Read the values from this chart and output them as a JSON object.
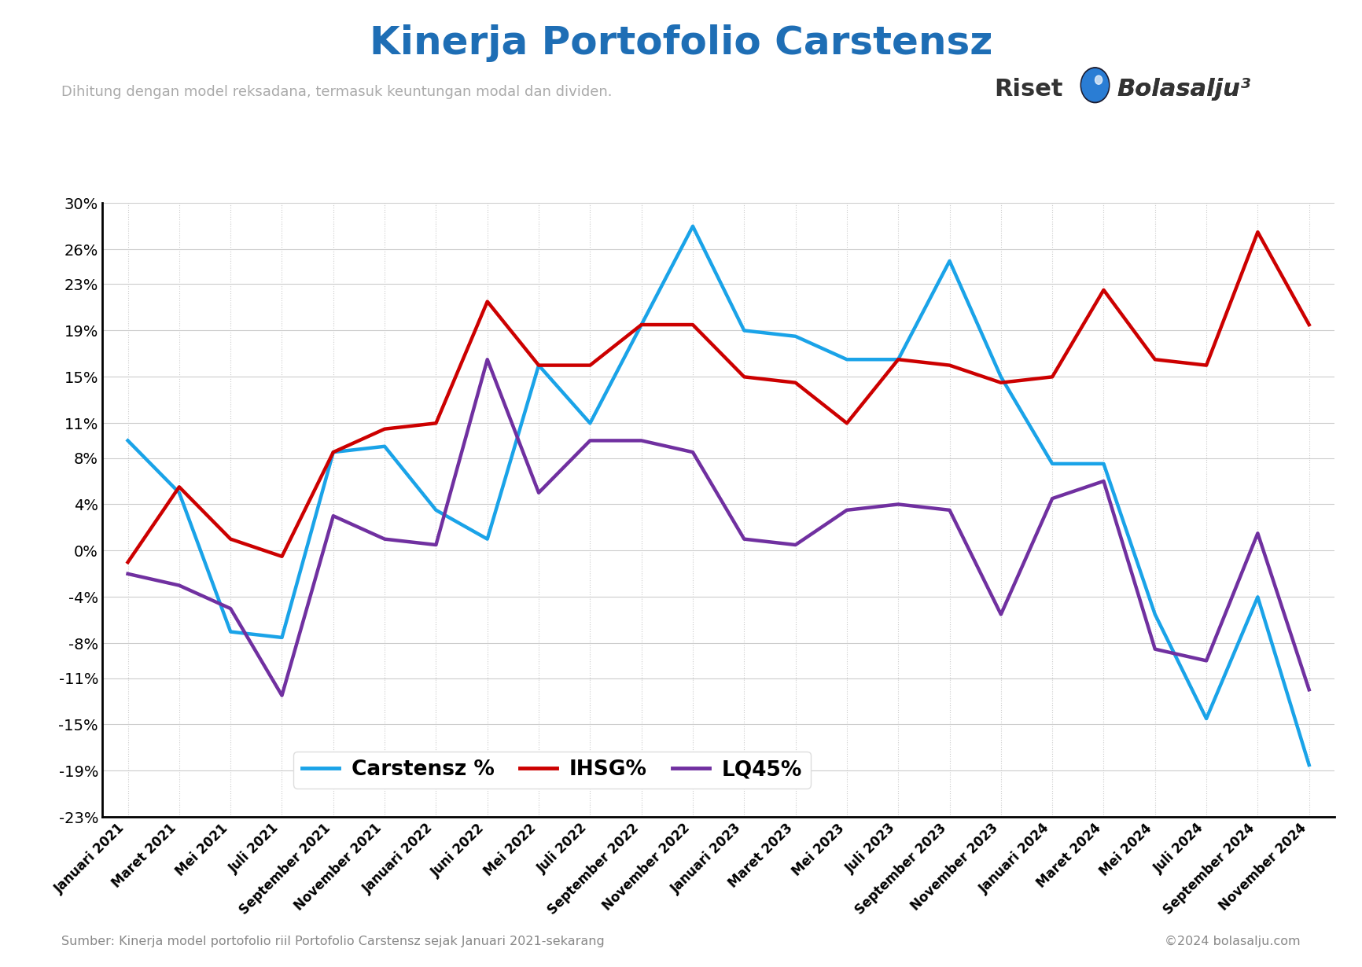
{
  "title": "Kinerja Portofolio Carstensz",
  "subtitle": "Dihitung dengan model reksadana, termasuk keuntungan modal dan dividen.",
  "footer_left": "Sumber: Kinerja model portofolio riil Portofolio Carstensz sejak Januari 2021-sekarang",
  "footer_right": "©2024 bolasalju.com",
  "x_labels": [
    "Januari 2021",
    "Maret 2021",
    "Mei 2021",
    "Juli 2021",
    "September 2021",
    "November 2021",
    "Januari 2022",
    "Juni 2022",
    "Mei 2022",
    "Juli 2022",
    "September 2022",
    "November 2022",
    "Januari 2023",
    "Maret 2023",
    "Mei 2023",
    "Juli 2023",
    "September 2023",
    "November 2023",
    "Januari 2024",
    "Maret 2024",
    "Mei 2024",
    "Juli 2024",
    "September 2024",
    "November 2024"
  ],
  "carstensz": [
    9.5,
    5.0,
    -7.0,
    -7.5,
    8.5,
    9.0,
    3.5,
    1.0,
    16.0,
    11.0,
    19.5,
    28.0,
    19.0,
    18.5,
    16.5,
    16.5,
    25.0,
    15.0,
    7.5,
    7.5,
    -5.5,
    -14.5,
    -4.0,
    -18.5
  ],
  "ihsg": [
    -1.0,
    5.5,
    1.0,
    -0.5,
    8.5,
    10.5,
    11.0,
    21.5,
    16.0,
    16.0,
    19.5,
    19.5,
    15.0,
    14.5,
    11.0,
    16.5,
    16.0,
    14.5,
    15.0,
    22.5,
    16.5,
    16.0,
    27.5,
    19.5
  ],
  "lq45": [
    -2.0,
    -3.0,
    -5.0,
    -12.5,
    3.0,
    1.0,
    0.5,
    16.5,
    5.0,
    9.5,
    9.5,
    8.5,
    1.0,
    0.5,
    3.5,
    4.0,
    3.5,
    -5.5,
    4.5,
    6.0,
    -8.5,
    -9.5,
    1.5,
    -12.0
  ],
  "carstensz_color": "#1aa3e8",
  "ihsg_color": "#cc0000",
  "lq45_color": "#7030a0",
  "ylim": [
    -23,
    30
  ],
  "ytick_vals": [
    -23,
    -19,
    -15,
    -11,
    -8,
    -4,
    0,
    4,
    8,
    11,
    15,
    19,
    23,
    26,
    30
  ],
  "background_color": "#ffffff",
  "grid_color": "#cccccc",
  "title_color": "#1e6eb5",
  "subtitle_color": "#aaaaaa",
  "footer_color": "#888888",
  "line_width": 3.2,
  "brand_text_color": "#333333",
  "brand_blue_color": "#1a5fa8",
  "logo_ball_color": "#2a7dd4"
}
